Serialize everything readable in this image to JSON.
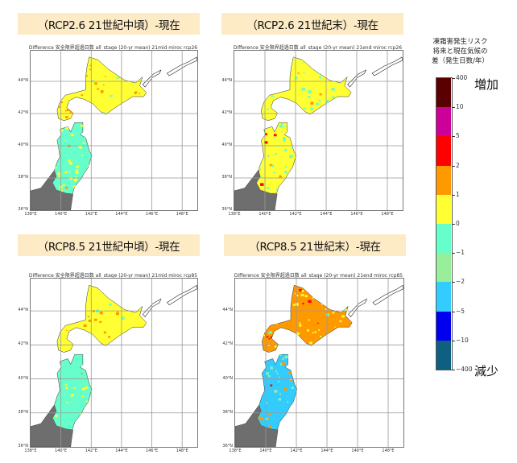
{
  "colorbar": {
    "header": [
      "凍霜害発生リスク",
      "将来と現在気候の",
      "差（発生日数/年）"
    ],
    "increase_label": "増加",
    "decrease_label": "減少",
    "boundaries": [
      "400",
      "10",
      "5",
      "2",
      "1",
      "0",
      "−1",
      "−2",
      "−5",
      "−10",
      "−400"
    ],
    "colors": [
      "#5a0000",
      "#cc0099",
      "#ff0000",
      "#ff9900",
      "#ffff33",
      "#66ffcc",
      "#99ee99",
      "#33ccff",
      "#0000ee",
      "#0e5f80"
    ]
  },
  "axes": {
    "x_ticks": [
      "138°E",
      "140°E",
      "142°E",
      "144°E",
      "146°E",
      "148°E"
    ],
    "y_ticks": [
      "36°N",
      "38°N",
      "40°N",
      "42°N",
      "44°N"
    ],
    "lon_range": [
      138,
      149
    ],
    "lat_range": [
      36,
      45.9
    ],
    "no_data_color": "#6e6e6e"
  },
  "panels": [
    {
      "heading": "（RCP2.6 21世紀中頃）-現在",
      "plot_title": "Difference 安全限界超過日数 all_stage (20-yr mean)  21mid  miroc  rcp26",
      "hokkaido_mix": {
        "classes": [
          4,
          3,
          5
        ],
        "weights": [
          0.7,
          0.2,
          0.1
        ]
      },
      "tohoku_mix": {
        "classes": [
          5,
          4,
          3
        ],
        "weights": [
          0.6,
          0.37,
          0.03
        ]
      }
    },
    {
      "heading": "（RCP2.6 21世紀末）-現在",
      "plot_title": "Difference 安全限界超過日数 all_stage (20-yr mean)  21end  miroc  rcp26",
      "hokkaido_mix": {
        "classes": [
          4,
          5,
          3
        ],
        "weights": [
          0.65,
          0.3,
          0.05
        ]
      },
      "tohoku_mix": {
        "classes": [
          4,
          5,
          3,
          2
        ],
        "weights": [
          0.45,
          0.35,
          0.12,
          0.08
        ]
      }
    },
    {
      "heading": "（RCP8.5 21世紀中頃）-現在",
      "plot_title": "Difference 安全限界超過日数 all_stage (20-yr mean)  21mid  miroc  rcp85",
      "hokkaido_mix": {
        "classes": [
          4,
          3,
          5
        ],
        "weights": [
          0.7,
          0.2,
          0.1
        ]
      },
      "tohoku_mix": {
        "classes": [
          5,
          4,
          3
        ],
        "weights": [
          0.6,
          0.35,
          0.05
        ]
      }
    },
    {
      "heading": "（RCP8.5 21世紀末）-現在",
      "plot_title": "Difference 安全限界超過日数 all_stage (20-yr mean)  21end  miroc  rcp85",
      "hokkaido_mix": {
        "classes": [
          3,
          4,
          2,
          5
        ],
        "weights": [
          0.55,
          0.38,
          0.03,
          0.04
        ]
      },
      "tohoku_mix": {
        "classes": [
          7,
          5,
          3,
          6,
          2,
          8
        ],
        "weights": [
          0.55,
          0.2,
          0.12,
          0.08,
          0.03,
          0.02
        ]
      }
    }
  ]
}
